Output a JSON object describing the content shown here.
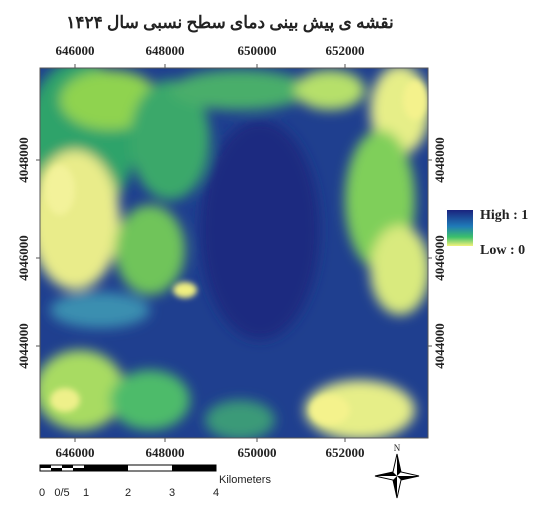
{
  "map": {
    "title": "نقشه ی پیش بینی دمای سطح نسبی سال ۱۴۲۴",
    "x_labels": [
      "646000",
      "648000",
      "650000",
      "652000"
    ],
    "y_labels": [
      "4048000",
      "4046000",
      "4044000"
    ],
    "legend": {
      "high": "High : 1",
      "low": "Low : 0"
    },
    "scale": {
      "labels": [
        "0",
        "0/5",
        "1",
        "2",
        "3",
        "4"
      ],
      "unit": "Kilometers"
    },
    "north": "N"
  }
}
